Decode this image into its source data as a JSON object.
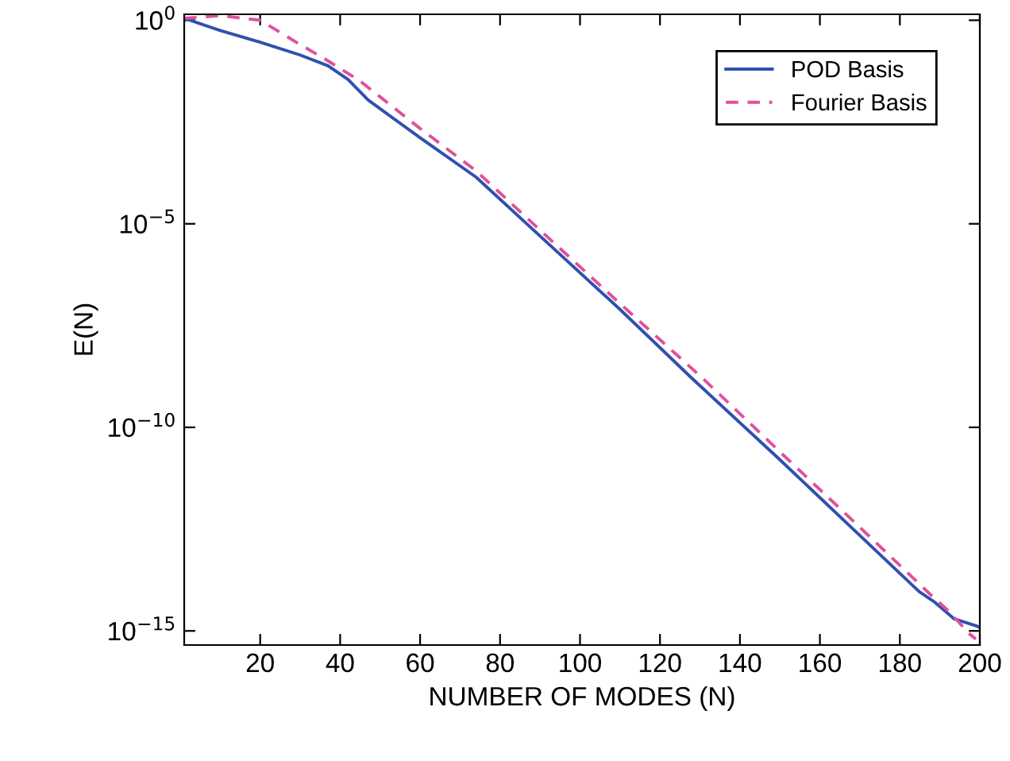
{
  "chart_data": {
    "type": "line",
    "xlabel": "NUMBER OF MODES (N)",
    "ylabel": "E(N)",
    "log": "y",
    "grid": false,
    "legend": "top right",
    "marker": "none",
    "xlim": [
      1,
      200
    ],
    "xticks": [
      20,
      40,
      60,
      80,
      100,
      120,
      140,
      160,
      180,
      200
    ],
    "ylim": [
      4.5e-16,
      1.4
    ],
    "yticks": [
      {
        "value": 1,
        "label": "10$^{0}$"
      },
      {
        "value": 1e-05,
        "label": "10$^{−5}$"
      },
      {
        "value": 1e-10,
        "label": "10$^{−10}$"
      },
      {
        "value": 1e-15,
        "label": "10$^{−15}$"
      }
    ],
    "series": [
      {
        "name": "POD Basis",
        "color": "#3050b0",
        "line_style": "solid",
        "x": [
          1,
          10,
          20,
          30,
          37,
          42,
          47,
          60,
          74,
          90,
          110,
          128,
          150,
          170,
          184.8,
          188.8,
          193.5,
          199.4,
          200
        ],
        "values": [
          1.12,
          0.56,
          0.29,
          0.14,
          0.076,
          0.035,
          0.011,
          0.0013,
          0.00014,
          5e-06,
          7.9e-08,
          1.6e-09,
          1.6e-11,
          2.2e-13,
          9.3e-15,
          5e-15,
          2e-15,
          1.3e-15,
          1.2e-15
        ]
      },
      {
        "name": "Fourier Basis",
        "color": "#e0509a",
        "line_style": "dashed",
        "x": [
          1,
          10,
          20,
          29,
          37,
          45,
          60,
          74,
          90,
          110,
          130.7,
          150,
          170,
          187.6,
          192,
          197.5,
          199
        ],
        "values": [
          1.12,
          1.3,
          1.0,
          0.29,
          0.1,
          0.032,
          0.0022,
          0.0002,
          7e-06,
          1.1e-07,
          1.6e-09,
          2.5e-11,
          3.5e-13,
          7.9e-15,
          3.2e-15,
          8.3e-16,
          6.3e-16
        ]
      }
    ]
  }
}
